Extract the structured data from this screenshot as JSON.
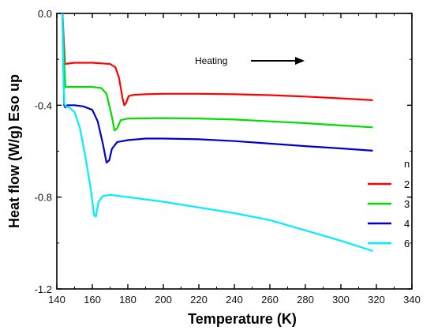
{
  "chart_data": {
    "type": "line",
    "xlabel": "Temperature (K)",
    "ylabel": "Heat flow (W/g) Eso up",
    "xlim": [
      140,
      340
    ],
    "ylim": [
      -1.2,
      0.0
    ],
    "xticks": [
      "140",
      "160",
      "180",
      "200",
      "220",
      "240",
      "260",
      "280",
      "300",
      "320",
      "340"
    ],
    "yticks": [
      "0.0",
      "-0.4",
      "-0.8",
      "-1.2"
    ],
    "annotation": "Heating",
    "legend_title": "n",
    "legend_position": "right",
    "series": [
      {
        "name": "2",
        "color": "#ff0000",
        "points": [
          [
            143.2,
            0.0
          ],
          [
            143.8,
            -0.1
          ],
          [
            144.6,
            -0.22
          ],
          [
            150,
            -0.215
          ],
          [
            160,
            -0.215
          ],
          [
            170,
            -0.22
          ],
          [
            173,
            -0.235
          ],
          [
            175,
            -0.28
          ],
          [
            177,
            -0.37
          ],
          [
            178,
            -0.4
          ],
          [
            179,
            -0.39
          ],
          [
            180.5,
            -0.36
          ],
          [
            183,
            -0.355
          ],
          [
            190,
            -0.352
          ],
          [
            200,
            -0.35
          ],
          [
            220,
            -0.35
          ],
          [
            240,
            -0.352
          ],
          [
            260,
            -0.356
          ],
          [
            280,
            -0.362
          ],
          [
            300,
            -0.37
          ],
          [
            318,
            -0.378
          ]
        ]
      },
      {
        "name": "3",
        "color": "#00dd00",
        "points": [
          [
            143.2,
            0.0
          ],
          [
            143.8,
            -0.15
          ],
          [
            144.8,
            -0.32
          ],
          [
            150,
            -0.32
          ],
          [
            160,
            -0.32
          ],
          [
            165,
            -0.325
          ],
          [
            168,
            -0.35
          ],
          [
            171,
            -0.45
          ],
          [
            172.5,
            -0.51
          ],
          [
            174,
            -0.5
          ],
          [
            176,
            -0.465
          ],
          [
            180,
            -0.458
          ],
          [
            200,
            -0.456
          ],
          [
            220,
            -0.458
          ],
          [
            240,
            -0.462
          ],
          [
            260,
            -0.47
          ],
          [
            280,
            -0.478
          ],
          [
            300,
            -0.488
          ],
          [
            318,
            -0.496
          ]
        ]
      },
      {
        "name": "4",
        "color": "#0000cc",
        "points": [
          [
            143.2,
            0.0
          ],
          [
            143.6,
            -0.2
          ],
          [
            144.2,
            -0.4
          ],
          [
            144.8,
            -0.41
          ],
          [
            146,
            -0.4
          ],
          [
            150,
            -0.4
          ],
          [
            155,
            -0.405
          ],
          [
            160,
            -0.42
          ],
          [
            163,
            -0.47
          ],
          [
            166,
            -0.57
          ],
          [
            168,
            -0.65
          ],
          [
            169.5,
            -0.64
          ],
          [
            171,
            -0.59
          ],
          [
            174,
            -0.56
          ],
          [
            180,
            -0.552
          ],
          [
            190,
            -0.545
          ],
          [
            200,
            -0.545
          ],
          [
            220,
            -0.548
          ],
          [
            240,
            -0.556
          ],
          [
            260,
            -0.567
          ],
          [
            280,
            -0.578
          ],
          [
            300,
            -0.588
          ],
          [
            318,
            -0.598
          ]
        ]
      },
      {
        "name": "6",
        "color": "#00eeff",
        "points": [
          [
            143.2,
            0.0
          ],
          [
            143.6,
            -0.2
          ],
          [
            144.2,
            -0.39
          ],
          [
            145,
            -0.405
          ],
          [
            147,
            -0.41
          ],
          [
            150,
            -0.43
          ],
          [
            153,
            -0.5
          ],
          [
            156,
            -0.62
          ],
          [
            159,
            -0.76
          ],
          [
            161,
            -0.88
          ],
          [
            162,
            -0.885
          ],
          [
            163.5,
            -0.82
          ],
          [
            166,
            -0.795
          ],
          [
            170,
            -0.79
          ],
          [
            180,
            -0.8
          ],
          [
            200,
            -0.82
          ],
          [
            220,
            -0.845
          ],
          [
            240,
            -0.87
          ],
          [
            260,
            -0.9
          ],
          [
            280,
            -0.945
          ],
          [
            300,
            -0.99
          ],
          [
            318,
            -1.035
          ]
        ]
      }
    ]
  }
}
